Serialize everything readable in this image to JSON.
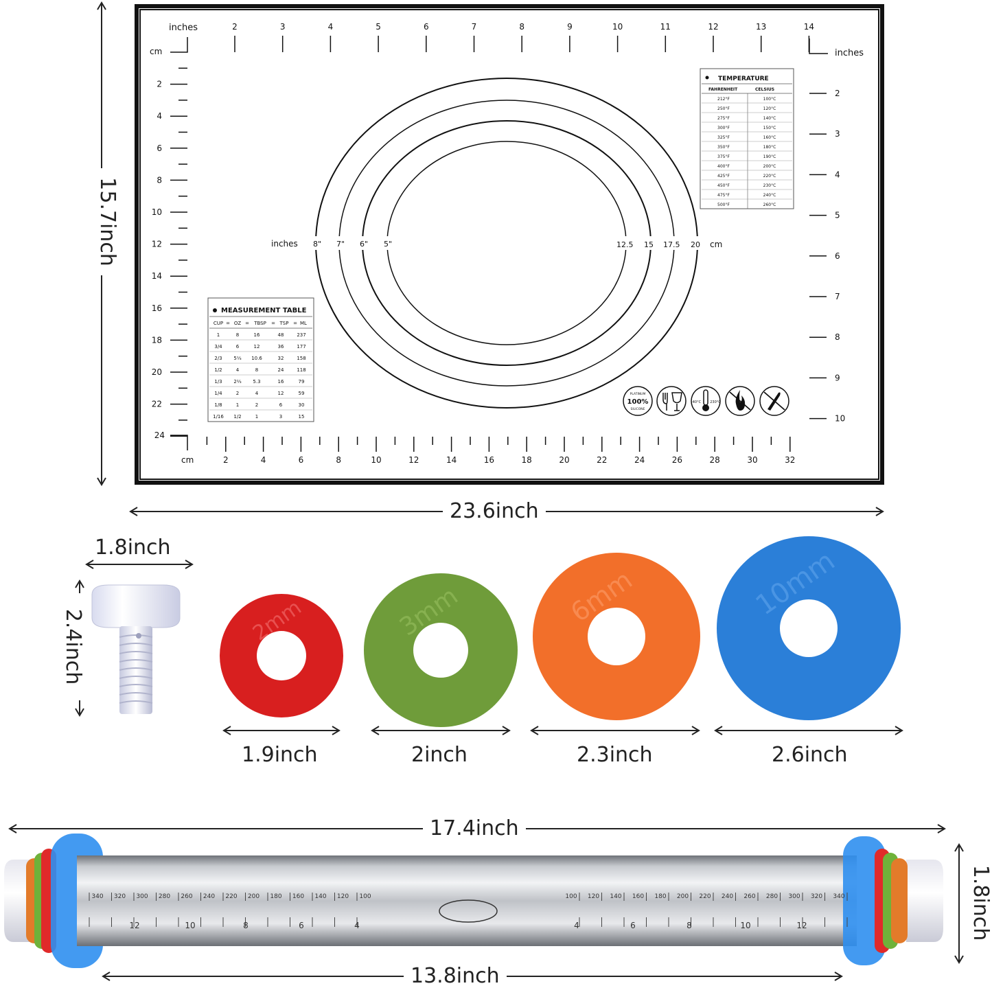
{
  "mat": {
    "top_inches_label": "inches",
    "top_inch_marks": [
      "2",
      "3",
      "4",
      "5",
      "6",
      "7",
      "8",
      "9",
      "10",
      "11",
      "12",
      "13",
      "14"
    ],
    "left_cm_label": "cm",
    "left_cm_marks": [
      "2",
      "4",
      "6",
      "8",
      "10",
      "12",
      "14",
      "16",
      "18",
      "20",
      "22",
      "24"
    ],
    "right_inches_label": "inches",
    "right_inch_marks": [
      "2",
      "3",
      "4",
      "5",
      "6",
      "7",
      "8",
      "9",
      "10"
    ],
    "bottom_cm_label": "cm",
    "bottom_cm_marks": [
      "2",
      "4",
      "6",
      "8",
      "10",
      "12",
      "14",
      "16",
      "18",
      "20",
      "22",
      "24",
      "26",
      "28",
      "30",
      "32"
    ],
    "circle_inches_label": "inches",
    "circle_inch_marks": [
      "8\"",
      "7\"",
      "6\"",
      "5\""
    ],
    "circle_cm_marks": [
      "12.5",
      "15",
      "17.5",
      "20"
    ],
    "circle_cm_label": "cm",
    "temperature_table": {
      "title": "TEMPERATURE",
      "headers": [
        "FAHRENHEIT",
        "CELSIUS"
      ],
      "rows": [
        [
          "212°F",
          "100°C"
        ],
        [
          "250°F",
          "120°C"
        ],
        [
          "275°F",
          "140°C"
        ],
        [
          "300°F",
          "150°C"
        ],
        [
          "325°F",
          "160°C"
        ],
        [
          "350°F",
          "180°C"
        ],
        [
          "375°F",
          "190°C"
        ],
        [
          "400°F",
          "200°C"
        ],
        [
          "425°F",
          "220°C"
        ],
        [
          "450°F",
          "230°C"
        ],
        [
          "475°F",
          "240°C"
        ],
        [
          "500°F",
          "260°C"
        ]
      ]
    },
    "measurement_table": {
      "title": "MEASUREMENT TABLE",
      "headers": [
        "CUP",
        "=",
        "OZ",
        "=",
        "TBSP",
        "=",
        "TSP",
        "=",
        "ML"
      ],
      "rows": [
        [
          "1",
          "8",
          "16",
          "48",
          "237"
        ],
        [
          "3/4",
          "6",
          "12",
          "36",
          "177"
        ],
        [
          "2/3",
          "5⅓",
          "10.6",
          "32",
          "158"
        ],
        [
          "1/2",
          "4",
          "8",
          "24",
          "118"
        ],
        [
          "1/3",
          "2⅔",
          "5.3",
          "16",
          "79"
        ],
        [
          "1/4",
          "2",
          "4",
          "12",
          "59"
        ],
        [
          "1/8",
          "1",
          "2",
          "6",
          "30"
        ],
        [
          "1/16",
          "1/2",
          "1",
          "3",
          "15"
        ]
      ]
    },
    "badges": {
      "platinum_top": "PLATINUM",
      "platinum_mid": "100%",
      "platinum_bottom": "SILICONE",
      "temp_low": "-40°C",
      "temp_high": "230°C"
    }
  },
  "dimensions": {
    "mat_height": "15.7inch",
    "mat_width": "23.6inch",
    "knob_width": "1.8inch",
    "knob_height": "2.4inch",
    "ring1": "1.9inch",
    "ring2": "2inch",
    "ring3": "2.3inch",
    "ring4": "2.6inch",
    "pin_total": "17.4inch",
    "pin_barrel": "13.8inch",
    "pin_diameter": "1.8inch"
  },
  "rings": [
    {
      "label": "2mm",
      "color": "#d81f1f"
    },
    {
      "label": "3mm",
      "color": "#6f9c3a"
    },
    {
      "label": "6mm",
      "color": "#f26f2a"
    },
    {
      "label": "10mm",
      "color": "#2b7fd8"
    }
  ],
  "pin_scale": {
    "left_marks": [
      "340",
      "320",
      "300",
      "280",
      "260",
      "240",
      "220",
      "200",
      "180",
      "160",
      "140",
      "120",
      "100"
    ],
    "right_marks": [
      "100",
      "120",
      "140",
      "160",
      "180",
      "200",
      "220",
      "240",
      "260",
      "280",
      "300",
      "320",
      "340"
    ],
    "left_inch_marks": [
      "12",
      "10",
      "8",
      "6",
      "4"
    ],
    "right_inch_marks": [
      "4",
      "6",
      "8",
      "10",
      "12"
    ]
  }
}
